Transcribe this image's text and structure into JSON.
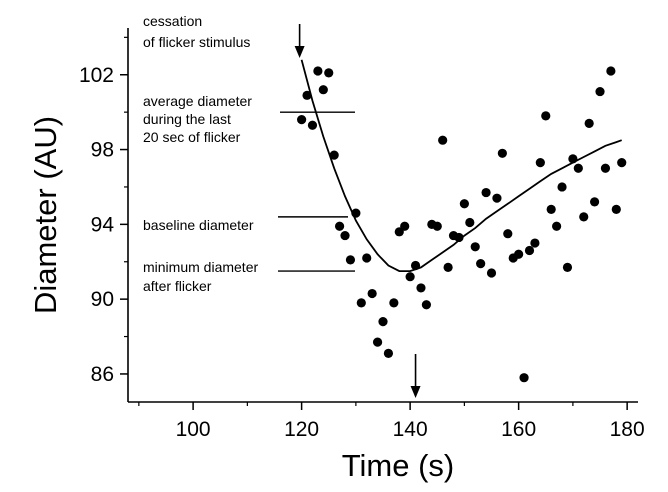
{
  "chart_data": {
    "type": "scatter",
    "xlabel": "Time (s)",
    "ylabel": "Diameter (AU)",
    "xlim": [
      88,
      182
    ],
    "ylim": [
      84.5,
      104.5
    ],
    "xticks": [
      100,
      120,
      140,
      160,
      180
    ],
    "yticks": [
      86,
      90,
      94,
      98,
      102
    ],
    "xtick_labels": [
      "100",
      "120",
      "140",
      "160",
      "180"
    ],
    "ytick_labels": [
      "86",
      "90",
      "94",
      "98",
      "102"
    ],
    "grid": false,
    "series": [
      {
        "kind": "points",
        "points": [
          [
            120,
            99.6
          ],
          [
            121,
            100.9
          ],
          [
            122,
            99.3
          ],
          [
            123,
            102.2
          ],
          [
            124,
            101.2
          ],
          [
            125,
            102.1
          ],
          [
            126,
            97.7
          ],
          [
            127,
            93.9
          ],
          [
            128,
            93.4
          ],
          [
            129,
            92.1
          ],
          [
            130,
            94.6
          ],
          [
            131,
            89.8
          ],
          [
            132,
            92.2
          ],
          [
            133,
            90.3
          ],
          [
            134,
            87.7
          ],
          [
            135,
            88.8
          ],
          [
            136,
            87.1
          ],
          [
            137,
            89.8
          ],
          [
            138,
            93.6
          ],
          [
            139,
            93.9
          ],
          [
            140,
            91.2
          ],
          [
            141,
            91.8
          ],
          [
            142,
            90.6
          ],
          [
            143,
            89.7
          ],
          [
            144,
            94.0
          ],
          [
            145,
            93.9
          ],
          [
            146,
            98.5
          ],
          [
            147,
            91.7
          ],
          [
            148,
            93.4
          ],
          [
            149,
            93.3
          ],
          [
            150,
            95.1
          ],
          [
            151,
            94.1
          ],
          [
            152,
            92.8
          ],
          [
            153,
            91.9
          ],
          [
            154,
            95.7
          ],
          [
            155,
            91.4
          ],
          [
            156,
            95.4
          ],
          [
            157,
            97.8
          ],
          [
            158,
            93.5
          ],
          [
            159,
            92.2
          ],
          [
            160,
            92.4
          ],
          [
            161,
            85.8
          ],
          [
            162,
            92.6
          ],
          [
            163,
            93.0
          ],
          [
            164,
            97.3
          ],
          [
            165,
            99.8
          ],
          [
            166,
            94.8
          ],
          [
            167,
            93.9
          ],
          [
            168,
            96.0
          ],
          [
            169,
            91.7
          ],
          [
            170,
            97.5
          ],
          [
            171,
            97.0
          ],
          [
            172,
            94.4
          ],
          [
            173,
            99.4
          ],
          [
            174,
            95.2
          ],
          [
            175,
            101.1
          ],
          [
            176,
            97.0
          ],
          [
            177,
            102.2
          ],
          [
            178,
            94.8
          ],
          [
            179,
            97.3
          ]
        ]
      },
      {
        "kind": "fit-curve",
        "points": [
          [
            120,
            102.8
          ],
          [
            122,
            100.6
          ],
          [
            124,
            98.7
          ],
          [
            126,
            97.0
          ],
          [
            128,
            95.5
          ],
          [
            130,
            94.2
          ],
          [
            132,
            93.2
          ],
          [
            134,
            92.4
          ],
          [
            136,
            91.8
          ],
          [
            138,
            91.5
          ],
          [
            140,
            91.5
          ],
          [
            142,
            91.7
          ],
          [
            144,
            92.1
          ],
          [
            146,
            92.5
          ],
          [
            148,
            92.9
          ],
          [
            150,
            93.4
          ],
          [
            152,
            93.8
          ],
          [
            154,
            94.3
          ],
          [
            156,
            94.7
          ],
          [
            158,
            95.1
          ],
          [
            160,
            95.5
          ],
          [
            162,
            95.9
          ],
          [
            164,
            96.3
          ],
          [
            166,
            96.7
          ],
          [
            168,
            97.0
          ],
          [
            170,
            97.3
          ],
          [
            172,
            97.6
          ],
          [
            174,
            97.9
          ],
          [
            176,
            98.2
          ],
          [
            178,
            98.4
          ],
          [
            179,
            98.5
          ]
        ]
      }
    ],
    "annotations": {
      "cessation": {
        "lines": [
          "cessation",
          "of flicker stimulus"
        ],
        "arrow_x": 120
      },
      "average": {
        "lines": [
          "average diameter",
          "during the last",
          "20 sec of flicker"
        ],
        "y": 100.0
      },
      "baseline": {
        "lines": [
          "baseline diameter"
        ],
        "y": 94.4
      },
      "minimum": {
        "lines": [
          "minimum diameter",
          "after flicker"
        ],
        "y": 91.5
      },
      "minimum_time_arrow_x": 141
    }
  }
}
